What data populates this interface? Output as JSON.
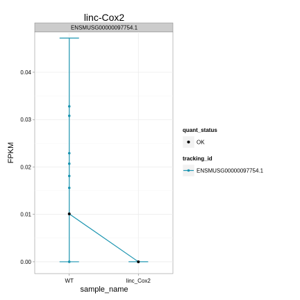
{
  "chart_data": {
    "type": "line",
    "title": "linc-Cox2",
    "facet_label": "ENSMUSG00000097754.1",
    "xlabel": "sample_name",
    "ylabel": "FPKM",
    "categories": [
      "WT",
      "linc_Cox2"
    ],
    "ylim": [
      -0.0025,
      0.0485
    ],
    "yticks": [
      0.0,
      0.01,
      0.02,
      0.03,
      0.04
    ],
    "ytick_labels": [
      "0.00",
      "0.01",
      "0.02",
      "0.03",
      "0.04"
    ],
    "grid": true,
    "legend_position": "right",
    "series": [
      {
        "name": "ENSMUSG00000097754.1",
        "color": "#1a94b0",
        "values": [
          0.0101,
          0.0
        ]
      }
    ],
    "error_bars": [
      {
        "category": "WT",
        "low": 0.0,
        "high": 0.0472
      },
      {
        "category": "linc_Cox2",
        "low": 0.0,
        "high": 0.0
      }
    ],
    "replicates": [
      {
        "category": "WT",
        "values": [
          0.0,
          0.0101,
          0.0156,
          0.0181,
          0.0207,
          0.0229,
          0.0308,
          0.0328
        ]
      }
    ],
    "points": [
      {
        "category": "WT",
        "value": 0.0101,
        "quant_status": "OK"
      },
      {
        "category": "linc_Cox2",
        "value": 0.0,
        "quant_status": "OK"
      }
    ],
    "legends": [
      {
        "title": "quant_status",
        "items": [
          {
            "label": "OK",
            "marker": "point",
            "color": "#000000"
          }
        ]
      },
      {
        "title": "tracking_id",
        "items": [
          {
            "label": "ENSMUSG00000097754.1",
            "marker": "line-point",
            "color": "#1a94b0"
          }
        ]
      }
    ],
    "colors": {
      "panel_background": "#ffffff",
      "grid": "#ebebeb",
      "strip_background": "#cccccc",
      "axis": "#7f7f7f"
    }
  }
}
